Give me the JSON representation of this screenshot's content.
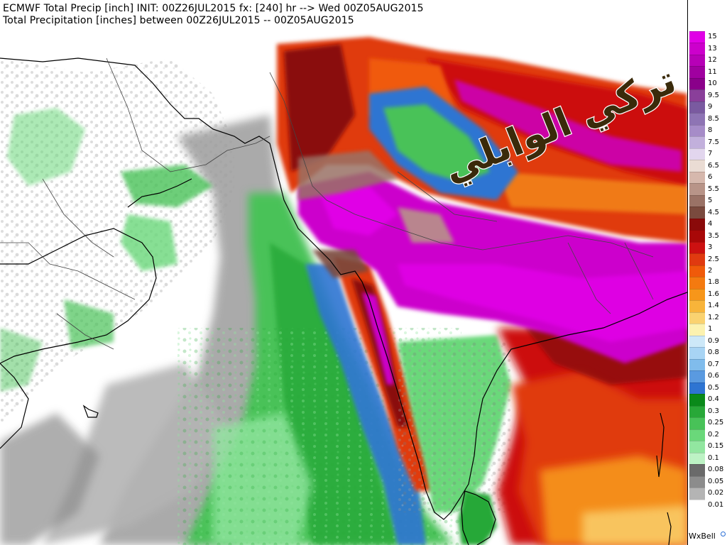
{
  "header": {
    "title_line_1": "ECMWF Total Precip [inch] INIT: 00Z26JUL2015 fx: [240] hr --> Wed 00Z05AUG2015",
    "title_line_2": "Total Precipitation [inches] between 00Z26JUL2015 -- 00Z05AUG2015"
  },
  "watermark": {
    "text": "تركي الوابلي",
    "fill": "#3a2a0a",
    "outline": "#ffffff"
  },
  "legend": {
    "items": [
      {
        "label": "15",
        "color": "#e000e6"
      },
      {
        "label": "13",
        "color": "#cc00cc"
      },
      {
        "label": "12",
        "color": "#b700b7"
      },
      {
        "label": "11",
        "color": "#a000a0"
      },
      {
        "label": "10",
        "color": "#8a008a"
      },
      {
        "label": "9.5",
        "color": "#8a3f9a"
      },
      {
        "label": "9",
        "color": "#7a5aa0"
      },
      {
        "label": "8.5",
        "color": "#8e74b4"
      },
      {
        "label": "8",
        "color": "#a68cc8"
      },
      {
        "label": "7.5",
        "color": "#c2b0dc"
      },
      {
        "label": "7",
        "color": "#e2d6ee"
      },
      {
        "label": "6.5",
        "color": "#eadcd4"
      },
      {
        "label": "6",
        "color": "#d6b8ad"
      },
      {
        "label": "5.5",
        "color": "#b89488"
      },
      {
        "label": "5",
        "color": "#9a7266"
      },
      {
        "label": "4.5",
        "color": "#7a4a3e"
      },
      {
        "label": "4",
        "color": "#8a0a0a"
      },
      {
        "label": "3.5",
        "color": "#a80808"
      },
      {
        "label": "3",
        "color": "#cc1111"
      },
      {
        "label": "2.5",
        "color": "#e03a10"
      },
      {
        "label": "2",
        "color": "#f05a0a"
      },
      {
        "label": "1.8",
        "color": "#f47a10"
      },
      {
        "label": "1.6",
        "color": "#f7961a"
      },
      {
        "label": "1.4",
        "color": "#f8b43a"
      },
      {
        "label": "1.2",
        "color": "#fad270"
      },
      {
        "label": "1",
        "color": "#fcf2b0"
      },
      {
        "label": "0.9",
        "color": "#cde8f8"
      },
      {
        "label": "0.8",
        "color": "#a8d4f4"
      },
      {
        "label": "0.7",
        "color": "#80bcec"
      },
      {
        "label": "0.6",
        "color": "#5a9ae0"
      },
      {
        "label": "0.5",
        "color": "#2e74d2"
      },
      {
        "label": "0.4",
        "color": "#0a8a1a"
      },
      {
        "label": "0.3",
        "color": "#28a838"
      },
      {
        "label": "0.25",
        "color": "#48c258"
      },
      {
        "label": "0.2",
        "color": "#6ad87a"
      },
      {
        "label": "0.15",
        "color": "#92e6a0"
      },
      {
        "label": "0.1",
        "color": "#bdf2c4"
      },
      {
        "label": "0.08",
        "color": "#6a6a6a"
      },
      {
        "label": "0.05",
        "color": "#8c8c8c"
      },
      {
        "label": "0.02",
        "color": "#b4b4b4"
      },
      {
        "label": "0.01",
        "color": "#ffffff"
      }
    ]
  },
  "brand": {
    "name": "WxBell",
    "accent": "#2a6fd6"
  }
}
